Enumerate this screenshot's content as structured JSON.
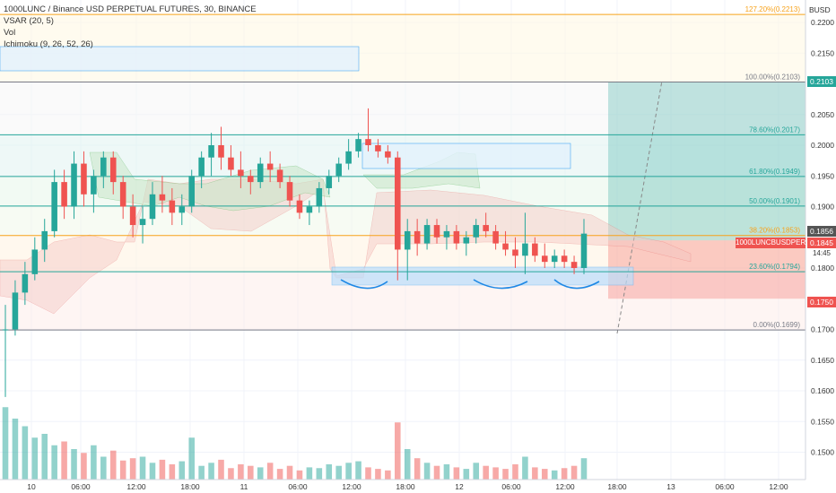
{
  "legend": {
    "symbol": "1000LUNC / Binance USD PERPETUAL FUTURES, 30, BINANCE",
    "vsar": "VSAR (20, 5)",
    "vol": "Vol",
    "ichimoku": "Ichimoku (9, 26, 52, 26)"
  },
  "axis_currency": "BUSD",
  "price_tags": {
    "fib_100": "0.2103",
    "current_high": "0.1856",
    "last": "0.1845",
    "countdown": "14:45",
    "stop": "0.1750",
    "symbol_badge": "1000LUNCBUSDPERP"
  },
  "colors": {
    "bull": "#26a69a",
    "bear": "#ef5350",
    "fib_line": "#26a69a",
    "fib_top": "#f7a21b",
    "target_zone": "#26a69a",
    "stop_zone": "#ef5350",
    "box": "#2962ff"
  },
  "chart_data": {
    "type": "candlestick",
    "x_ticks": [
      "10",
      "06:00",
      "12:00",
      "18:00",
      "11",
      "06:00",
      "12:00",
      "18:00",
      "12",
      "06:00",
      "12:00",
      "18:00",
      "13",
      "06:00",
      "12:00"
    ],
    "y_ticks": [
      "0.2200",
      "0.2150",
      "0.2050",
      "0.2000",
      "0.1950",
      "0.1900",
      "0.1800",
      "0.1700",
      "0.1650",
      "0.1600",
      "0.1550",
      "0.1500"
    ],
    "ylim": [
      0.1465,
      0.2245
    ],
    "fib_levels": [
      {
        "label": "127.20%(0.2213)",
        "value": 0.2213
      },
      {
        "label": "100.00%(0.2103)",
        "value": 0.2103
      },
      {
        "label": "78.60%(0.2017)",
        "value": 0.2017
      },
      {
        "label": "61.80%(0.1949)",
        "value": 0.1949
      },
      {
        "label": "50.00%(0.1901)",
        "value": 0.1901
      },
      {
        "label": "38.20%(0.1853)",
        "value": 0.1853
      },
      {
        "label": "23.60%(0.1794)",
        "value": 0.1794
      },
      {
        "label": "0.00%(0.1699)",
        "value": 0.1699
      }
    ],
    "position": {
      "entry": 0.1845,
      "target": 0.2103,
      "stop": 0.175
    },
    "candles": [
      [
        0.17,
        0.174,
        0.159,
        0.17
      ],
      [
        0.17,
        0.178,
        0.169,
        0.176
      ],
      [
        0.176,
        0.181,
        0.174,
        0.179
      ],
      [
        0.179,
        0.185,
        0.178,
        0.183
      ],
      [
        0.183,
        0.188,
        0.181,
        0.186
      ],
      [
        0.186,
        0.196,
        0.185,
        0.194
      ],
      [
        0.194,
        0.196,
        0.188,
        0.19
      ],
      [
        0.19,
        0.199,
        0.188,
        0.197
      ],
      [
        0.197,
        0.199,
        0.19,
        0.192
      ],
      [
        0.192,
        0.196,
        0.189,
        0.195
      ],
      [
        0.195,
        0.199,
        0.193,
        0.198
      ],
      [
        0.198,
        0.199,
        0.192,
        0.194
      ],
      [
        0.194,
        0.195,
        0.188,
        0.19
      ],
      [
        0.19,
        0.192,
        0.185,
        0.187
      ],
      [
        0.187,
        0.19,
        0.184,
        0.188
      ],
      [
        0.188,
        0.194,
        0.187,
        0.192
      ],
      [
        0.192,
        0.195,
        0.189,
        0.191
      ],
      [
        0.191,
        0.193,
        0.187,
        0.189
      ],
      [
        0.189,
        0.192,
        0.187,
        0.19
      ],
      [
        0.19,
        0.196,
        0.189,
        0.195
      ],
      [
        0.195,
        0.199,
        0.193,
        0.198
      ],
      [
        0.198,
        0.202,
        0.195,
        0.2
      ],
      [
        0.2,
        0.203,
        0.196,
        0.198
      ],
      [
        0.198,
        0.2,
        0.195,
        0.196
      ],
      [
        0.196,
        0.199,
        0.193,
        0.195
      ],
      [
        0.195,
        0.196,
        0.192,
        0.194
      ],
      [
        0.194,
        0.198,
        0.193,
        0.197
      ],
      [
        0.197,
        0.199,
        0.194,
        0.196
      ],
      [
        0.196,
        0.197,
        0.193,
        0.194
      ],
      [
        0.194,
        0.195,
        0.19,
        0.191
      ],
      [
        0.191,
        0.192,
        0.188,
        0.189
      ],
      [
        0.189,
        0.191,
        0.187,
        0.19
      ],
      [
        0.19,
        0.194,
        0.189,
        0.193
      ],
      [
        0.193,
        0.196,
        0.192,
        0.195
      ],
      [
        0.195,
        0.198,
        0.194,
        0.197
      ],
      [
        0.197,
        0.201,
        0.196,
        0.199
      ],
      [
        0.199,
        0.202,
        0.198,
        0.201
      ],
      [
        0.201,
        0.206,
        0.199,
        0.2
      ],
      [
        0.2,
        0.201,
        0.198,
        0.199
      ],
      [
        0.199,
        0.2,
        0.197,
        0.198
      ],
      [
        0.198,
        0.199,
        0.178,
        0.183
      ],
      [
        0.183,
        0.188,
        0.178,
        0.186
      ],
      [
        0.186,
        0.188,
        0.182,
        0.184
      ],
      [
        0.184,
        0.188,
        0.183,
        0.187
      ],
      [
        0.187,
        0.188,
        0.184,
        0.185
      ],
      [
        0.185,
        0.187,
        0.183,
        0.186
      ],
      [
        0.186,
        0.187,
        0.183,
        0.184
      ],
      [
        0.184,
        0.186,
        0.182,
        0.185
      ],
      [
        0.185,
        0.188,
        0.184,
        0.187
      ],
      [
        0.187,
        0.189,
        0.185,
        0.186
      ],
      [
        0.186,
        0.187,
        0.183,
        0.184
      ],
      [
        0.184,
        0.186,
        0.182,
        0.183
      ],
      [
        0.183,
        0.185,
        0.18,
        0.182
      ],
      [
        0.182,
        0.189,
        0.179,
        0.184
      ],
      [
        0.184,
        0.185,
        0.181,
        0.182
      ],
      [
        0.182,
        0.184,
        0.18,
        0.181
      ],
      [
        0.181,
        0.183,
        0.18,
        0.182
      ],
      [
        0.182,
        0.183,
        0.18,
        0.181
      ],
      [
        0.181,
        0.182,
        0.179,
        0.18
      ],
      [
        0.18,
        0.188,
        0.179,
        0.1856
      ]
    ],
    "volume_scale": [
      0,
      100
    ]
  }
}
